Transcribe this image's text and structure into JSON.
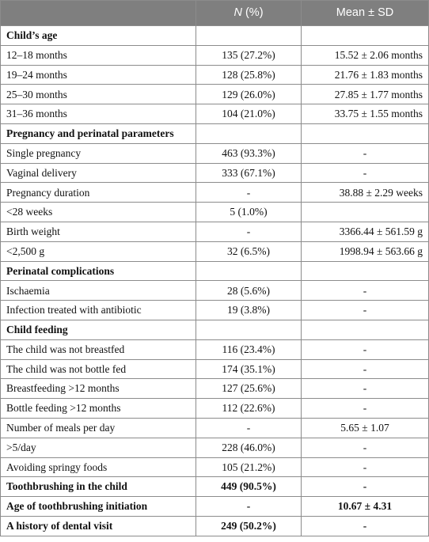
{
  "header": {
    "col1": "",
    "col2_italic": "N",
    "col2_rest": " (%)",
    "col3": "Mean ± SD"
  },
  "rows": [
    {
      "type": "section",
      "label": "Child’s age",
      "n": "",
      "mean": ""
    },
    {
      "type": "item",
      "label": "12–18 months",
      "n": "135 (27.2%)",
      "mean": "15.52 ± 2.06 months",
      "align": "right"
    },
    {
      "type": "item",
      "label": "19–24 months",
      "n": "128 (25.8%)",
      "mean": "21.76 ± 1.83 months",
      "align": "right"
    },
    {
      "type": "item",
      "label": "25–30 months",
      "n": "129 (26.0%)",
      "mean": "27.85 ± 1.77 months",
      "align": "right"
    },
    {
      "type": "item",
      "label": "31–36 months",
      "n": "104 (21.0%)",
      "mean": "33.75 ± 1.55 months",
      "align": "right"
    },
    {
      "type": "section",
      "label": "Pregnancy and perinatal parameters",
      "n": "",
      "mean": ""
    },
    {
      "type": "item",
      "label": "Single pregnancy",
      "n": "463 (93.3%)",
      "mean": "-"
    },
    {
      "type": "item",
      "label": "Vaginal delivery",
      "n": "333 (67.1%)",
      "mean": "-"
    },
    {
      "type": "item",
      "label": "Pregnancy duration",
      "n": "-",
      "mean": "38.88 ± 2.29 weeks",
      "align": "right"
    },
    {
      "type": "item",
      "label": "<28 weeks",
      "n": "5 (1.0%)",
      "mean": ""
    },
    {
      "type": "item",
      "label": "Birth weight",
      "n": "-",
      "mean": "3366.44 ± 561.59 g",
      "align": "right"
    },
    {
      "type": "item",
      "label": "<2,500 g",
      "n": "32 (6.5%)",
      "mean": "1998.94 ± 563.66 g",
      "align": "right"
    },
    {
      "type": "section",
      "label": "Perinatal complications",
      "n": "",
      "mean": ""
    },
    {
      "type": "item",
      "label": "Ischaemia",
      "n": "28 (5.6%)",
      "mean": "-"
    },
    {
      "type": "item",
      "label": "Infection treated with antibiotic",
      "n": "19 (3.8%)",
      "mean": "-"
    },
    {
      "type": "section",
      "label": "Child feeding",
      "n": "",
      "mean": ""
    },
    {
      "type": "item",
      "label": "The child was not breastfed",
      "n": "116 (23.4%)",
      "mean": "-"
    },
    {
      "type": "item",
      "label": "The child was not bottle fed",
      "n": "174 (35.1%)",
      "mean": "-"
    },
    {
      "type": "item",
      "label": "Breastfeeding >12 months",
      "n": "127 (25.6%)",
      "mean": "-"
    },
    {
      "type": "item",
      "label": "Bottle feeding >12 months",
      "n": "112 (22.6%)",
      "mean": "-"
    },
    {
      "type": "item",
      "label": "Number of meals per day",
      "n": "-",
      "mean": "5.65 ± 1.07"
    },
    {
      "type": "item",
      "label": ">5/day",
      "n": "228 (46.0%)",
      "mean": "-"
    },
    {
      "type": "item",
      "label": "Avoiding springy foods",
      "n": "105 (21.2%)",
      "mean": "-"
    },
    {
      "type": "section",
      "label": "Toothbrushing in the child",
      "n": "449 (90.5%)",
      "mean": "-"
    },
    {
      "type": "section",
      "label": "Age of toothbrushing initiation",
      "n": "-",
      "mean": "10.67 ± 4.31"
    },
    {
      "type": "section",
      "label": "A history of dental visit",
      "n": "249 (50.2%)",
      "mean": "-"
    }
  ]
}
